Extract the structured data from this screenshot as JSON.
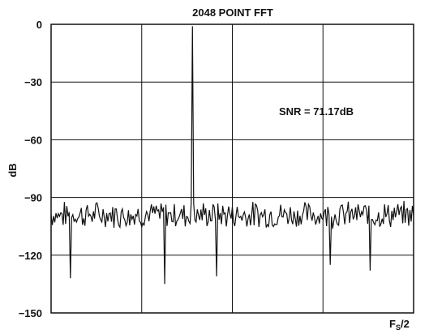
{
  "chart_data": {
    "type": "line",
    "title": "2048 POINT FFT",
    "ylabel": "dB",
    "xlabel_main": "F",
    "xlabel_sub": "S",
    "xlabel_tail": "/2",
    "ylim": [
      -150,
      0
    ],
    "xlim": [
      0,
      1
    ],
    "yticks": [
      0,
      -30,
      -60,
      -90,
      -120,
      -150
    ],
    "ytick_labels": [
      "0",
      "−30",
      "−60",
      "−90",
      "−120",
      "−150"
    ],
    "annotation": "SNR = 71.17dB",
    "grid": true,
    "color": "#111111",
    "series": [
      {
        "x": [
          0,
          0.5,
          0.5
        ],
        "y": [
          -97,
          -94.8,
          -93.7
        ],
        "noise": {
          "points": 300,
          "base": -99,
          "amplitude": 6,
          "seed": 7
        },
        "peak": {
          "x": 0.391,
          "y": -1
        },
        "spurs": [
          {
            "x": 0.053,
            "y": -132
          },
          {
            "x": 0.312,
            "y": -135
          },
          {
            "x": 0.457,
            "y": -131
          },
          {
            "x": 0.77,
            "y": -125
          },
          {
            "x": 0.88,
            "y": -128
          }
        ]
      }
    ]
  }
}
